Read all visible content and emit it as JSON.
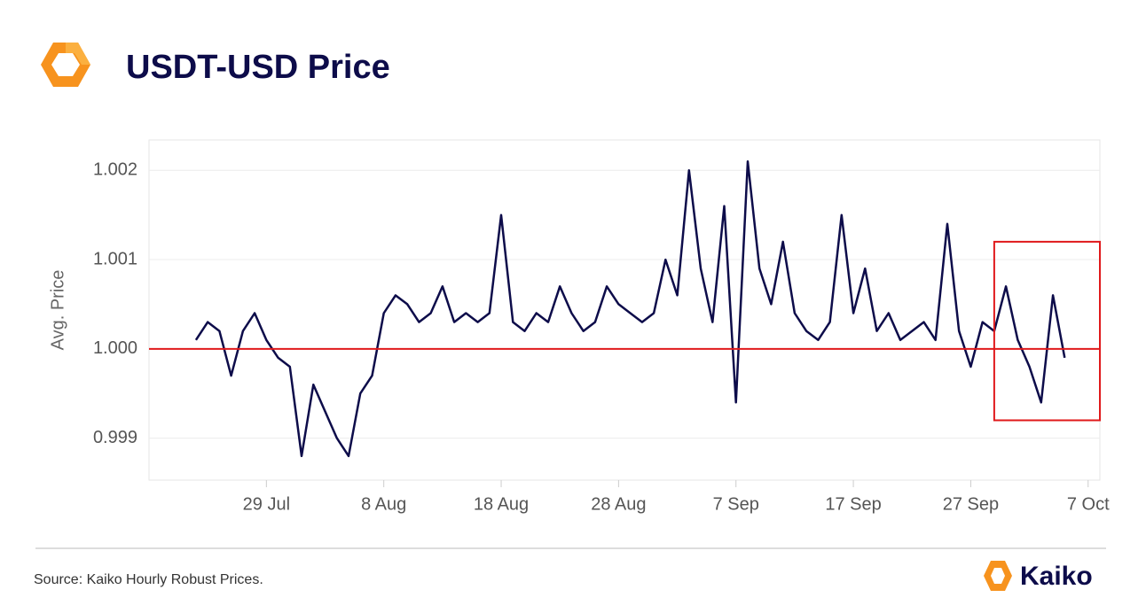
{
  "chart_data": {
    "type": "line",
    "title": "USDT-USD Price",
    "y_label": "Avg. Price",
    "source": "Source: Kaiko Hourly Robust Prices.",
    "brand": "Kaiko",
    "color": "#0d0c4a",
    "x": [
      "23 Jul",
      "24 Jul",
      "25 Jul",
      "26 Jul",
      "27 Jul",
      "28 Jul",
      "29 Jul",
      "30 Jul",
      "31 Jul",
      "1 Aug",
      "2 Aug",
      "3 Aug",
      "4 Aug",
      "5 Aug",
      "6 Aug",
      "7 Aug",
      "8 Aug",
      "9 Aug",
      "10 Aug",
      "11 Aug",
      "12 Aug",
      "13 Aug",
      "14 Aug",
      "15 Aug",
      "16 Aug",
      "17 Aug",
      "18 Aug",
      "19 Aug",
      "20 Aug",
      "21 Aug",
      "22 Aug",
      "23 Aug",
      "24 Aug",
      "25 Aug",
      "26 Aug",
      "27 Aug",
      "28 Aug",
      "29 Aug",
      "30 Aug",
      "31 Aug",
      "1 Sep",
      "2 Sep",
      "3 Sep",
      "4 Sep",
      "5 Sep",
      "6 Sep",
      "7 Sep",
      "8 Sep",
      "9 Sep",
      "10 Sep",
      "11 Sep",
      "12 Sep",
      "13 Sep",
      "14 Sep",
      "15 Sep",
      "16 Sep",
      "17 Sep",
      "18 Sep",
      "19 Sep",
      "20 Sep",
      "21 Sep",
      "22 Sep",
      "23 Sep",
      "24 Sep",
      "25 Sep",
      "26 Sep",
      "27 Sep",
      "28 Sep",
      "29 Sep",
      "30 Sep",
      "1 Oct",
      "2 Oct",
      "3 Oct",
      "4 Oct",
      "5 Oct"
    ],
    "values": [
      1.0001,
      1.0003,
      1.0002,
      0.9997,
      1.0002,
      1.0004,
      1.0001,
      0.9999,
      0.9998,
      0.9988,
      0.9996,
      0.9993,
      0.999,
      0.9988,
      0.9995,
      0.9997,
      1.0004,
      1.0006,
      1.0005,
      1.0003,
      1.0004,
      1.0007,
      1.0003,
      1.0004,
      1.0003,
      1.0004,
      1.0015,
      1.0003,
      1.0002,
      1.0004,
      1.0003,
      1.0007,
      1.0004,
      1.0002,
      1.0003,
      1.0007,
      1.0005,
      1.0004,
      1.0003,
      1.0004,
      1.001,
      1.0006,
      1.002,
      1.0009,
      1.0003,
      1.0016,
      0.9994,
      1.0021,
      1.0009,
      1.0005,
      1.0012,
      1.0004,
      1.0002,
      1.0001,
      1.0003,
      1.0015,
      1.0004,
      1.0009,
      1.0002,
      1.0004,
      1.0001,
      1.0002,
      1.0003,
      1.0001,
      1.0014,
      1.0002,
      0.9998,
      1.0003,
      1.0002,
      1.0007,
      1.0001,
      0.9998,
      0.9994,
      1.0006,
      0.9999
    ],
    "xlim": [
      "19 Jul",
      "8 Oct"
    ],
    "xticks": [
      "29 Jul",
      "8 Aug",
      "18 Aug",
      "28 Aug",
      "7 Sep",
      "17 Sep",
      "27 Sep",
      "7 Oct"
    ],
    "ylim": [
      0.99853,
      1.00234
    ],
    "yticks": [
      0.999,
      1.001,
      {
        "value": 1,
        "label": "1.000"
      },
      1.002
    ],
    "grid": true,
    "reference_line": {
      "value": 1,
      "color": "#e0191b"
    },
    "highlight": {
      "x": [
        "29 Sep",
        "8 Oct"
      ],
      "y": [
        0.9992,
        1.0012
      ],
      "color": "#e0191b"
    }
  }
}
